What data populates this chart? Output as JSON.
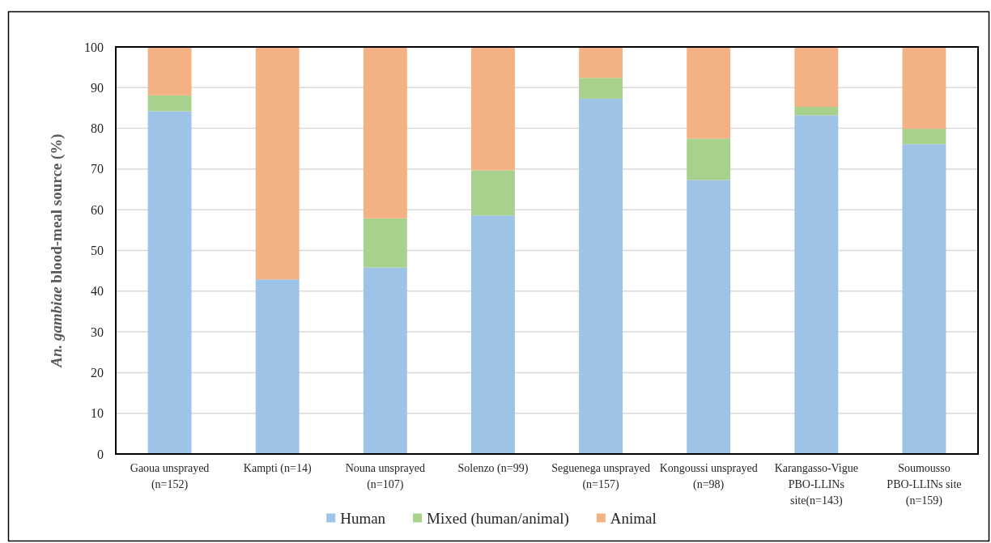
{
  "chart_data": {
    "type": "bar",
    "stacked": true,
    "categories": [
      "Gaoua unsprayed (n=152)",
      "Kampti (n=14)",
      "Nouna unsprayed (n=107)",
      "Solenzo (n=99)",
      "Seguenega unsprayed (n=157)",
      "Kongoussi unsprayed (n=98)",
      "Karangasso-Vigue PBO-LLINs site(n=143)",
      "Soumousso PBO-LLINs site (n=159)"
    ],
    "series": [
      {
        "name": "Human",
        "color": "#9dc3e6",
        "values": [
          84.2,
          42.9,
          45.8,
          58.6,
          87.3,
          67.3,
          83.2,
          76.1
        ]
      },
      {
        "name": "Mixed (human/animal)",
        "color": "#a9d18e",
        "values": [
          3.9,
          0,
          12.1,
          11.1,
          5.1,
          10.2,
          2.1,
          3.8
        ]
      },
      {
        "name": "Animal",
        "color": "#f4b183",
        "values": [
          11.9,
          57.1,
          42.1,
          30.3,
          7.6,
          22.5,
          14.7,
          20.1
        ]
      }
    ],
    "ylabel": "An. gambiae blood-meal source (%)",
    "ylim": [
      0,
      100
    ],
    "yticks": [
      0,
      10,
      20,
      30,
      40,
      50,
      60,
      70,
      80,
      90,
      100
    ],
    "grid": "y",
    "legend": "bottom"
  }
}
